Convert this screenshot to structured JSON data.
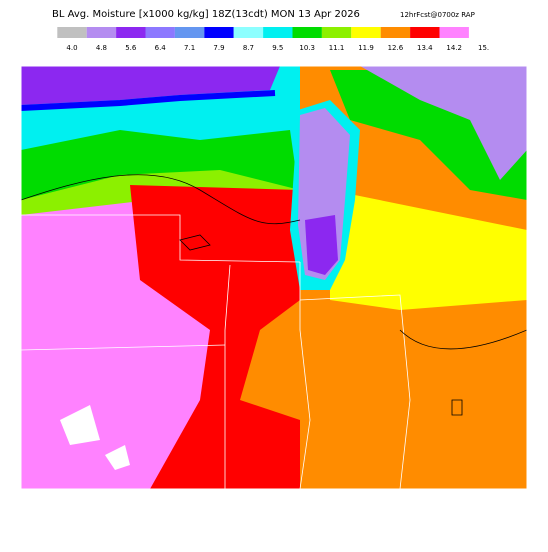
{
  "header": {
    "title": "BL Avg. Moisture [x1000 kg/kg] 18Z(13cdt) MON 13 Apr 2026",
    "subtitle": "12hrFcst@0700z RAP"
  },
  "legend": {
    "labels": [
      "4.0",
      "4.8",
      "5.6",
      "6.4",
      "7.1",
      "7.9",
      "8.7",
      "9.5",
      "10.3",
      "11.1",
      "11.9",
      "12.6",
      "13.4",
      "14.2",
      "15."
    ],
    "colors": [
      "#c0c0c0",
      "#b48cf0",
      "#8c28f0",
      "#8c78ff",
      "#6496f0",
      "#0000ff",
      "#8cffff",
      "#00f0f0",
      "#00dc00",
      "#8cf000",
      "#ffff00",
      "#ff8c00",
      "#ff0000",
      "#ff82ff"
    ]
  }
}
